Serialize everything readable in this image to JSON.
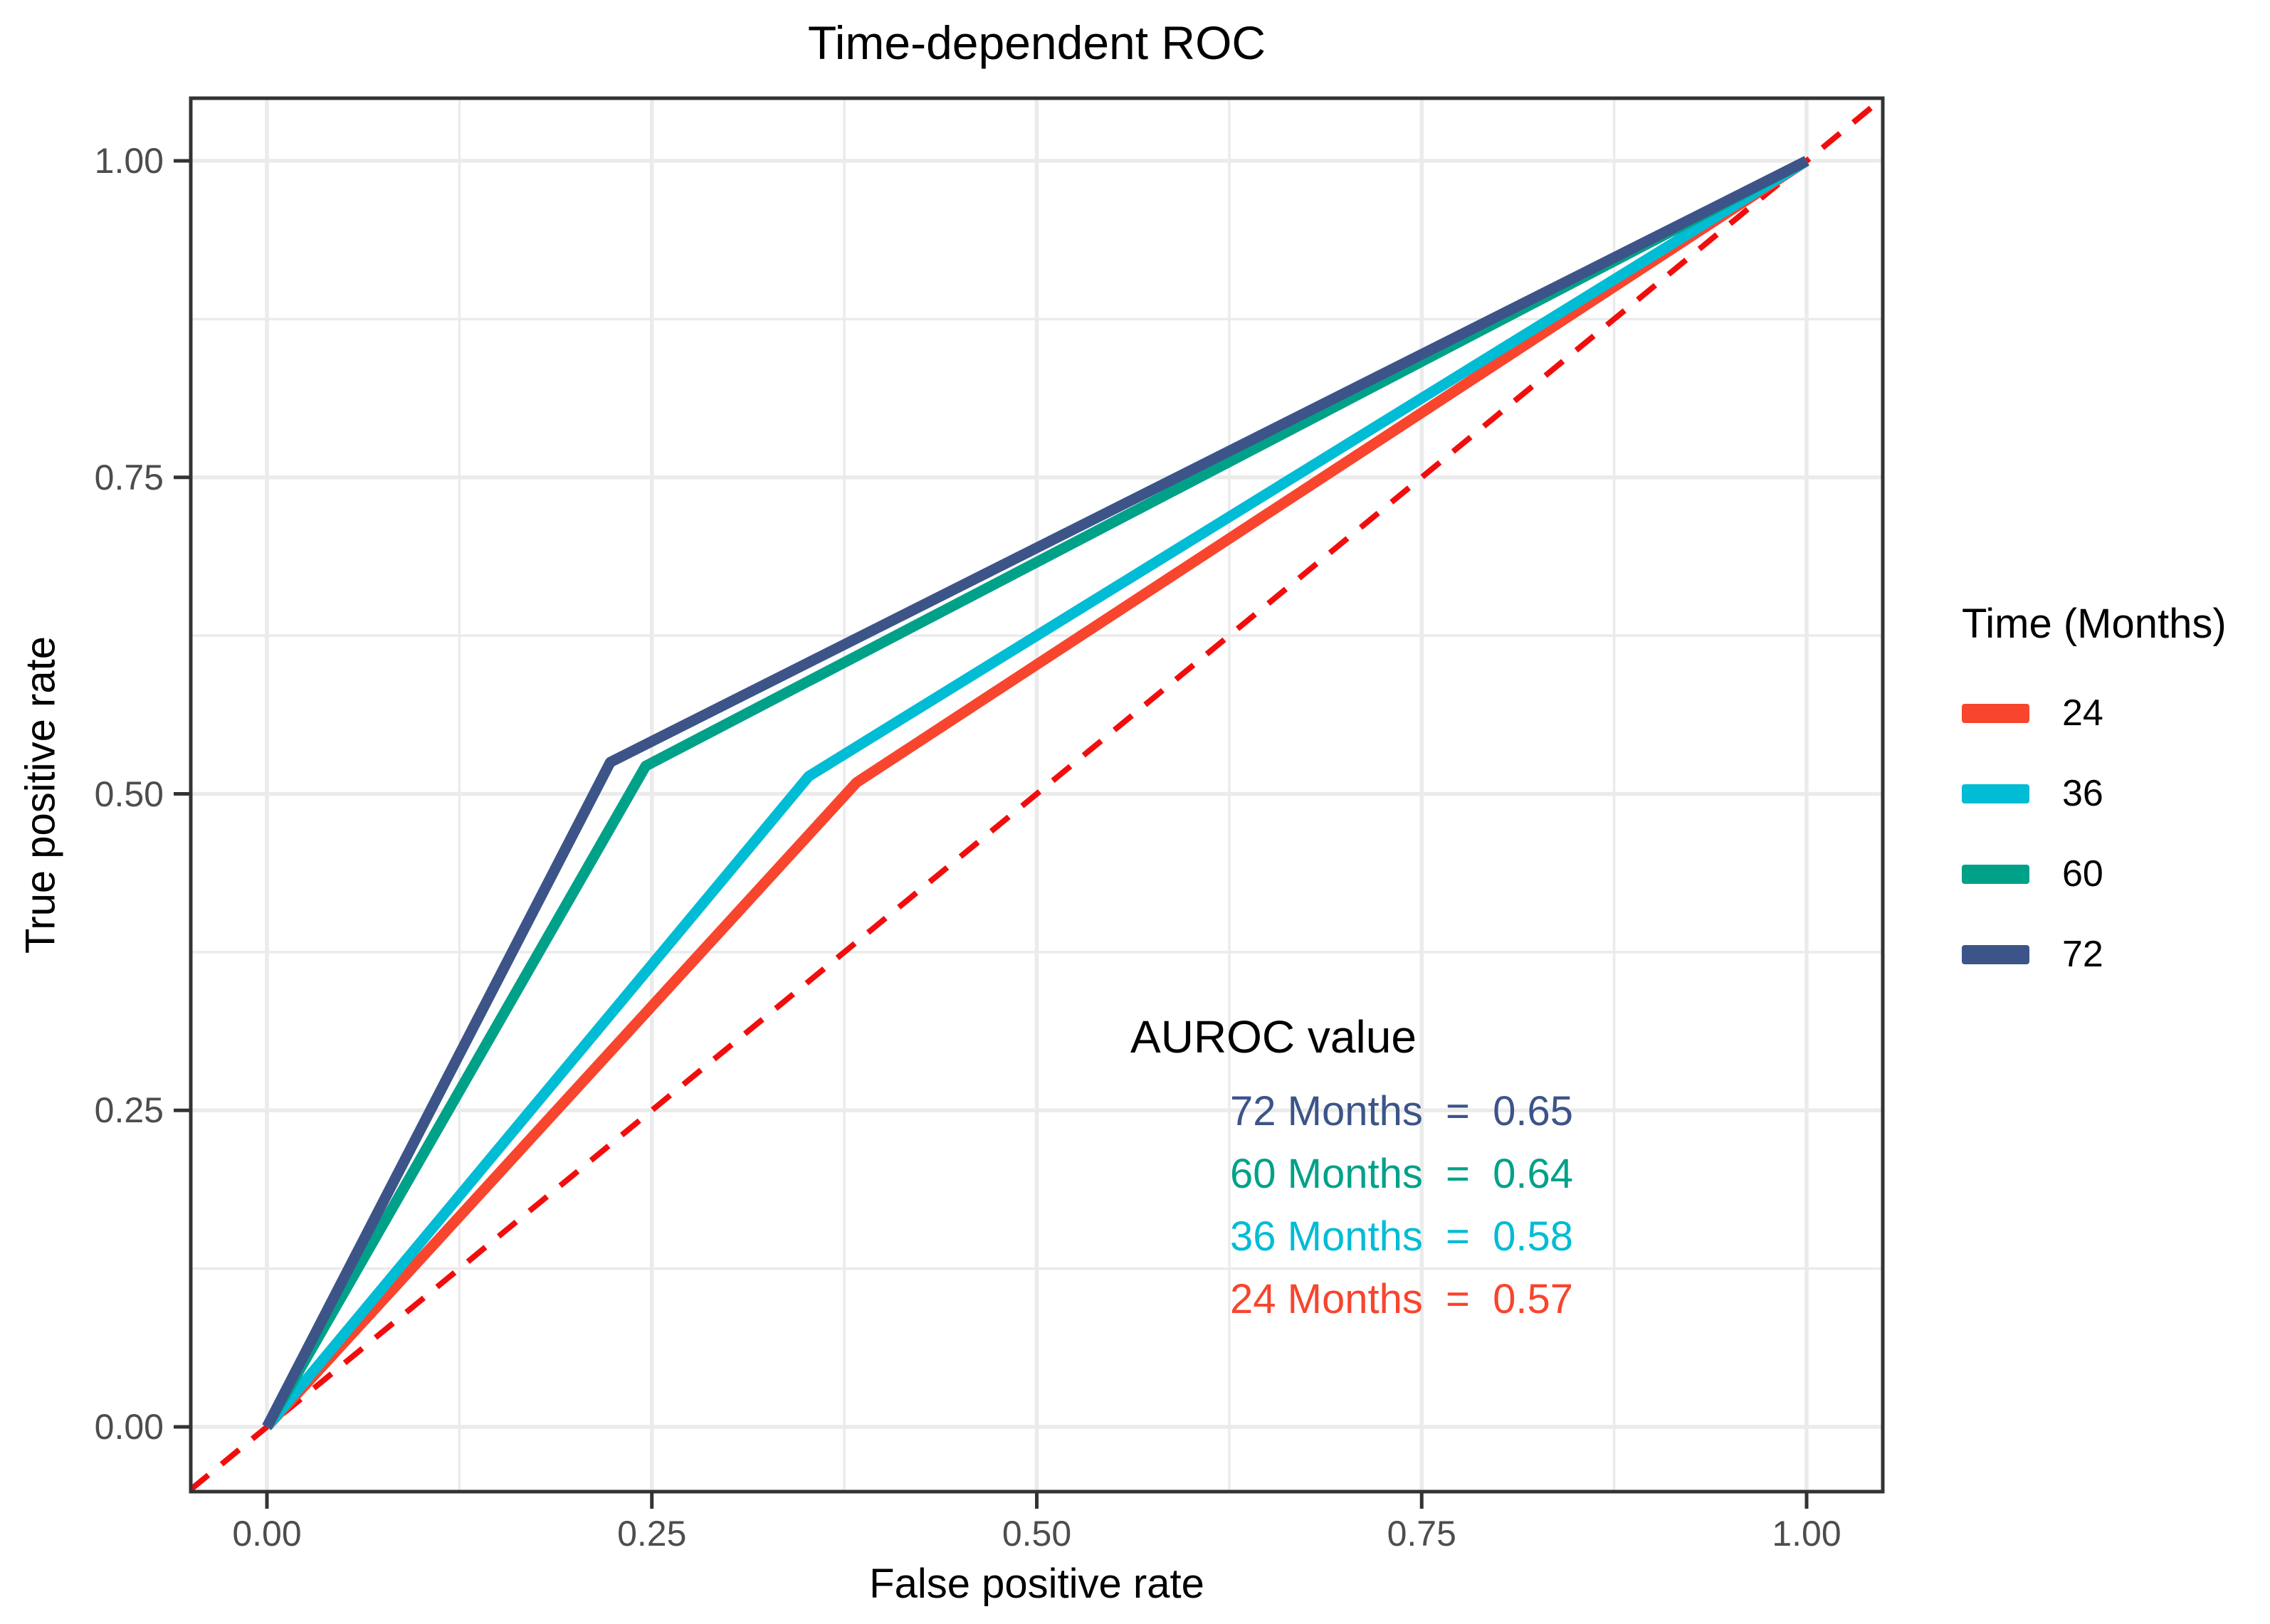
{
  "title": "Time-dependent ROC",
  "axes": {
    "x_label": "False positive rate",
    "y_label": "True positive rate",
    "x_tick_labels": [
      "0.00",
      "0.25",
      "0.50",
      "0.75",
      "1.00"
    ],
    "y_tick_labels": [
      "0.00",
      "0.25",
      "0.50",
      "0.75",
      "1.00"
    ]
  },
  "legend": {
    "title": "Time (Months)",
    "items": [
      {
        "label": "24",
        "color": "#F8452E"
      },
      {
        "label": "36",
        "color": "#00BCD4"
      },
      {
        "label": "60",
        "color": "#00A189"
      },
      {
        "label": "72",
        "color": "#3C5488"
      }
    ]
  },
  "annotation": {
    "heading": "AUROC value",
    "lines": [
      {
        "text": "72 Months  =  0.65",
        "color": "#3C5488"
      },
      {
        "text": "60 Months  =  0.64",
        "color": "#00A189"
      },
      {
        "text": "36 Months  =  0.58",
        "color": "#00BCD4"
      },
      {
        "text": "24 Months  =  0.57",
        "color": "#F8452E"
      }
    ]
  },
  "chart_data": {
    "type": "line",
    "title": "Time-dependent ROC",
    "xlabel": "False positive rate",
    "ylabel": "True positive rate",
    "xlim": [
      -0.05,
      1.05
    ],
    "ylim": [
      -0.05,
      1.05
    ],
    "x_ticks": [
      0,
      0.25,
      0.5,
      0.75,
      1
    ],
    "y_ticks": [
      0,
      0.25,
      0.5,
      0.75,
      1
    ],
    "grid": "major and minor gridlines, light gray on white",
    "legend_position": "right",
    "diagonal": {
      "type": "chance line y = x",
      "color": "#F20D0D",
      "dashed": true
    },
    "series": [
      {
        "name": "24",
        "color": "#F8452E",
        "auroc": 0.57,
        "points": [
          [
            0,
            0
          ],
          [
            0.383,
            0.509
          ],
          [
            1,
            1
          ]
        ]
      },
      {
        "name": "36",
        "color": "#00BCD4",
        "auroc": 0.58,
        "points": [
          [
            0,
            0
          ],
          [
            0.352,
            0.514
          ],
          [
            1,
            1
          ]
        ]
      },
      {
        "name": "60",
        "color": "#00A189",
        "auroc": 0.64,
        "points": [
          [
            0,
            0
          ],
          [
            0.246,
            0.522
          ],
          [
            1,
            1
          ]
        ]
      },
      {
        "name": "72",
        "color": "#3C5488",
        "auroc": 0.65,
        "points": [
          [
            0,
            0
          ],
          [
            0.223,
            0.525
          ],
          [
            1,
            1
          ]
        ]
      }
    ]
  }
}
